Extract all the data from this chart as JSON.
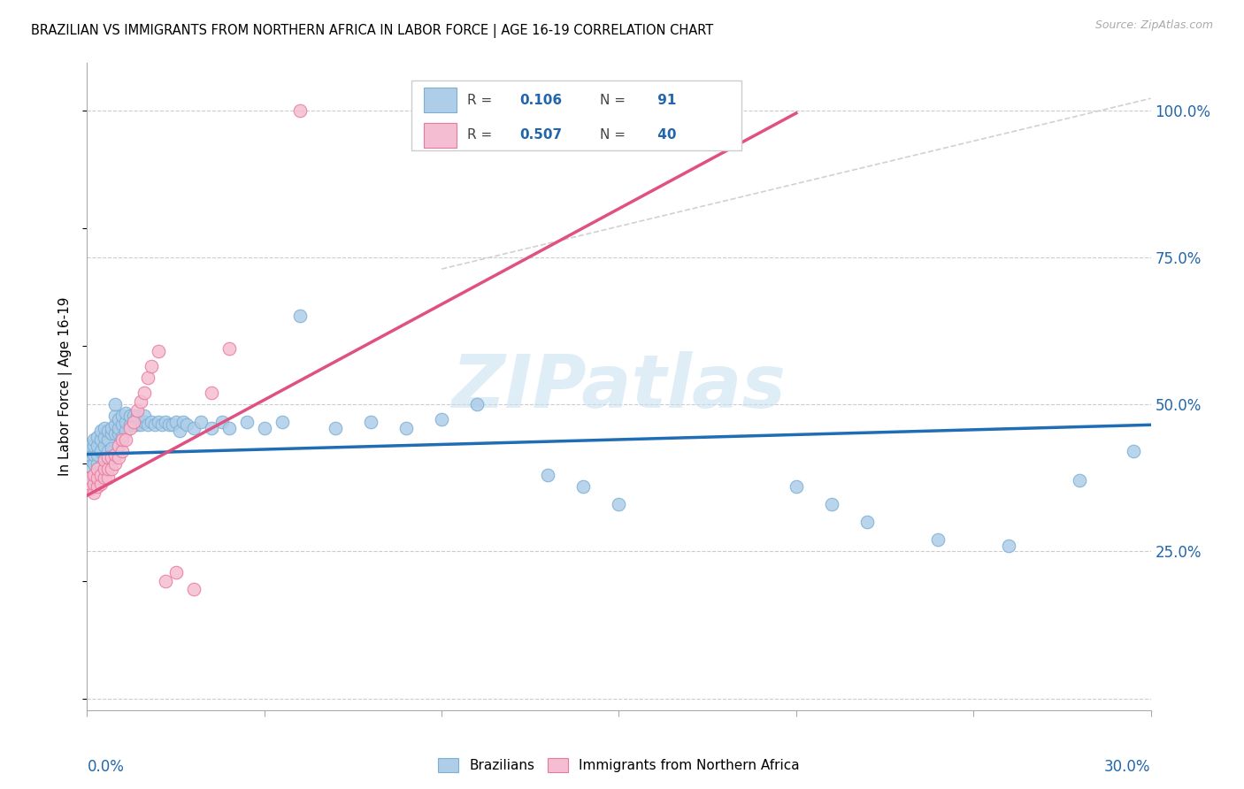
{
  "title": "BRAZILIAN VS IMMIGRANTS FROM NORTHERN AFRICA IN LABOR FORCE | AGE 16-19 CORRELATION CHART",
  "source": "Source: ZipAtlas.com",
  "ylabel": "In Labor Force | Age 16-19",
  "xmin": 0.0,
  "xmax": 0.3,
  "ymin": -0.02,
  "ymax": 1.08,
  "right_ytick_vals": [
    0.0,
    0.25,
    0.5,
    0.75,
    1.0
  ],
  "right_yticklabels": [
    "",
    "25.0%",
    "50.0%",
    "75.0%",
    "100.0%"
  ],
  "color_blue": "#aecde8",
  "color_blue_edge": "#7bafd4",
  "color_blue_line": "#1f6eb5",
  "color_pink": "#f5bdd1",
  "color_pink_edge": "#e8799e",
  "color_pink_line": "#e05080",
  "color_grid": "#cccccc",
  "color_ref_line": "#cccccc",
  "watermark_text": "ZIPatlas",
  "watermark_color": "#c5dff0",
  "blue_x": [
    0.001,
    0.001,
    0.001,
    0.001,
    0.001,
    0.002,
    0.002,
    0.002,
    0.002,
    0.002,
    0.003,
    0.003,
    0.003,
    0.003,
    0.003,
    0.003,
    0.004,
    0.004,
    0.004,
    0.004,
    0.004,
    0.005,
    0.005,
    0.005,
    0.005,
    0.005,
    0.006,
    0.006,
    0.006,
    0.006,
    0.007,
    0.007,
    0.007,
    0.008,
    0.008,
    0.008,
    0.008,
    0.009,
    0.009,
    0.009,
    0.01,
    0.01,
    0.01,
    0.011,
    0.011,
    0.011,
    0.012,
    0.012,
    0.013,
    0.013,
    0.014,
    0.014,
    0.015,
    0.016,
    0.016,
    0.017,
    0.018,
    0.019,
    0.02,
    0.021,
    0.022,
    0.023,
    0.024,
    0.025,
    0.026,
    0.027,
    0.028,
    0.03,
    0.032,
    0.035,
    0.038,
    0.04,
    0.045,
    0.05,
    0.055,
    0.06,
    0.07,
    0.08,
    0.09,
    0.1,
    0.11,
    0.13,
    0.14,
    0.15,
    0.2,
    0.21,
    0.22,
    0.24,
    0.26,
    0.28,
    0.295
  ],
  "blue_y": [
    0.395,
    0.405,
    0.415,
    0.42,
    0.43,
    0.38,
    0.4,
    0.415,
    0.43,
    0.44,
    0.37,
    0.385,
    0.4,
    0.415,
    0.43,
    0.445,
    0.385,
    0.395,
    0.42,
    0.44,
    0.455,
    0.395,
    0.41,
    0.43,
    0.445,
    0.46,
    0.405,
    0.42,
    0.44,
    0.455,
    0.425,
    0.45,
    0.46,
    0.45,
    0.465,
    0.48,
    0.5,
    0.45,
    0.46,
    0.475,
    0.445,
    0.465,
    0.48,
    0.455,
    0.47,
    0.485,
    0.465,
    0.48,
    0.465,
    0.48,
    0.465,
    0.48,
    0.465,
    0.47,
    0.48,
    0.465,
    0.47,
    0.465,
    0.47,
    0.465,
    0.47,
    0.465,
    0.465,
    0.47,
    0.455,
    0.47,
    0.465,
    0.46,
    0.47,
    0.46,
    0.47,
    0.46,
    0.47,
    0.46,
    0.47,
    0.65,
    0.46,
    0.47,
    0.46,
    0.475,
    0.5,
    0.38,
    0.36,
    0.33,
    0.36,
    0.33,
    0.3,
    0.27,
    0.26,
    0.37,
    0.42
  ],
  "pink_x": [
    0.001,
    0.001,
    0.001,
    0.002,
    0.002,
    0.002,
    0.003,
    0.003,
    0.003,
    0.004,
    0.004,
    0.005,
    0.005,
    0.005,
    0.006,
    0.006,
    0.006,
    0.007,
    0.007,
    0.008,
    0.008,
    0.009,
    0.009,
    0.01,
    0.01,
    0.011,
    0.012,
    0.013,
    0.014,
    0.015,
    0.016,
    0.017,
    0.018,
    0.02,
    0.022,
    0.025,
    0.03,
    0.035,
    0.04,
    0.06
  ],
  "pink_y": [
    0.355,
    0.365,
    0.375,
    0.35,
    0.365,
    0.38,
    0.36,
    0.375,
    0.39,
    0.365,
    0.38,
    0.375,
    0.39,
    0.405,
    0.375,
    0.39,
    0.41,
    0.39,
    0.41,
    0.4,
    0.415,
    0.41,
    0.43,
    0.42,
    0.44,
    0.44,
    0.46,
    0.47,
    0.49,
    0.505,
    0.52,
    0.545,
    0.565,
    0.59,
    0.2,
    0.215,
    0.185,
    0.52,
    0.595,
    1.0
  ],
  "blue_trend_x": [
    0.0,
    0.3
  ],
  "blue_trend_y": [
    0.415,
    0.465
  ],
  "pink_trend_x": [
    0.0,
    0.2
  ],
  "pink_trend_y": [
    0.345,
    0.995
  ],
  "ref_line_x": [
    0.1,
    0.3
  ],
  "ref_line_y": [
    0.73,
    1.02
  ]
}
